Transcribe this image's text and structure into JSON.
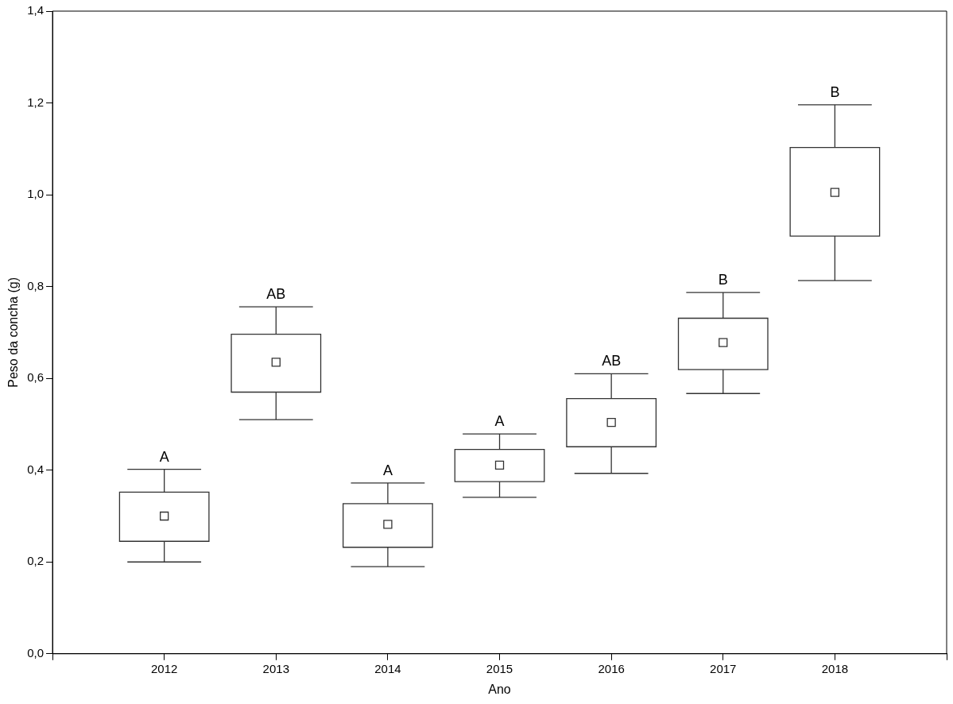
{
  "chart_data": {
    "type": "box",
    "xlabel": "Ano",
    "ylabel": "Peso da concha (g)",
    "categories": [
      "2012",
      "2013",
      "2014",
      "2015",
      "2016",
      "2017",
      "2018"
    ],
    "boxes": [
      {
        "low": 0.2,
        "q1": 0.245,
        "median": 0.3,
        "q3": 0.352,
        "high": 0.402
      },
      {
        "low": 0.51,
        "q1": 0.57,
        "median": 0.635,
        "q3": 0.696,
        "high": 0.756
      },
      {
        "low": 0.19,
        "q1": 0.232,
        "median": 0.282,
        "q3": 0.327,
        "high": 0.372
      },
      {
        "low": 0.341,
        "q1": 0.375,
        "median": 0.411,
        "q3": 0.445,
        "high": 0.479
      },
      {
        "low": 0.393,
        "q1": 0.451,
        "median": 0.504,
        "q3": 0.556,
        "high": 0.61
      },
      {
        "low": 0.567,
        "q1": 0.619,
        "median": 0.678,
        "q3": 0.731,
        "high": 0.787
      },
      {
        "low": 0.813,
        "q1": 0.91,
        "median": 1.005,
        "q3": 1.103,
        "high": 1.196
      }
    ],
    "ylim": [
      0,
      1.4
    ],
    "yticks": [
      {
        "value": 0,
        "label": "0,0"
      },
      {
        "value": 0.2,
        "label": "0,2"
      },
      {
        "value": 0.4,
        "label": "0,4"
      },
      {
        "value": 0.6,
        "label": "0,6"
      },
      {
        "value": 0.8,
        "label": "0,8"
      },
      {
        "value": 1.0,
        "label": "1,0"
      },
      {
        "value": 1.2,
        "label": "1,2"
      },
      {
        "value": 1.4,
        "label": "1,4"
      }
    ],
    "annotations": [
      {
        "text": "A",
        "x": "2012",
        "y": 0.402
      },
      {
        "text": "AB",
        "x": "2013",
        "y": 0.756
      },
      {
        "text": "A",
        "x": "2014",
        "y": 0.372
      },
      {
        "text": "A",
        "x": "2015",
        "y": 0.479
      },
      {
        "text": "AB",
        "x": "2016",
        "y": 0.61
      },
      {
        "text": "B",
        "x": "2017",
        "y": 0.787
      },
      {
        "text": "B",
        "x": "2018",
        "y": 1.196
      }
    ],
    "grid": false,
    "legend": false,
    "marker": "square",
    "color": "#333333"
  }
}
